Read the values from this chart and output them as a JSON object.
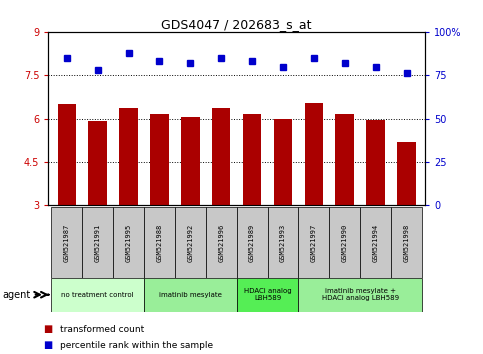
{
  "title": "GDS4047 / 202683_s_at",
  "samples": [
    "GSM521987",
    "GSM521991",
    "GSM521995",
    "GSM521988",
    "GSM521992",
    "GSM521996",
    "GSM521989",
    "GSM521993",
    "GSM521997",
    "GSM521990",
    "GSM521994",
    "GSM521998"
  ],
  "bar_values": [
    6.5,
    5.9,
    6.35,
    6.15,
    6.05,
    6.35,
    6.15,
    5.98,
    6.55,
    6.15,
    5.95,
    5.2
  ],
  "dot_values": [
    85,
    78,
    88,
    83,
    82,
    85,
    83,
    80,
    85,
    82,
    80,
    76
  ],
  "ylim_left": [
    3,
    9
  ],
  "ylim_right": [
    0,
    100
  ],
  "yticks_left": [
    3,
    4.5,
    6,
    7.5,
    9
  ],
  "ytick_labels_left": [
    "3",
    "4.5",
    "6",
    "7.5",
    "9"
  ],
  "yticks_right": [
    0,
    25,
    50,
    75,
    100
  ],
  "ytick_labels_right": [
    "0",
    "25",
    "50",
    "75",
    "100%"
  ],
  "groups": [
    {
      "label": "no treatment control",
      "start": 0,
      "end": 3,
      "color": "#ccffcc"
    },
    {
      "label": "imatinib mesylate",
      "start": 3,
      "end": 6,
      "color": "#99ee99"
    },
    {
      "label": "HDACi analog\nLBH589",
      "start": 6,
      "end": 8,
      "color": "#55ee55"
    },
    {
      "label": "imatinib mesylate +\nHDACi analog LBH589",
      "start": 8,
      "end": 12,
      "color": "#99ee99"
    }
  ],
  "bar_color": "#aa0000",
  "dot_color": "#0000cc",
  "bg_plot": "#ffffff",
  "bg_sample": "#c8c8c8",
  "agent_label": "agent",
  "legend_bar": "transformed count",
  "legend_dot": "percentile rank within the sample",
  "bar_width": 0.6
}
